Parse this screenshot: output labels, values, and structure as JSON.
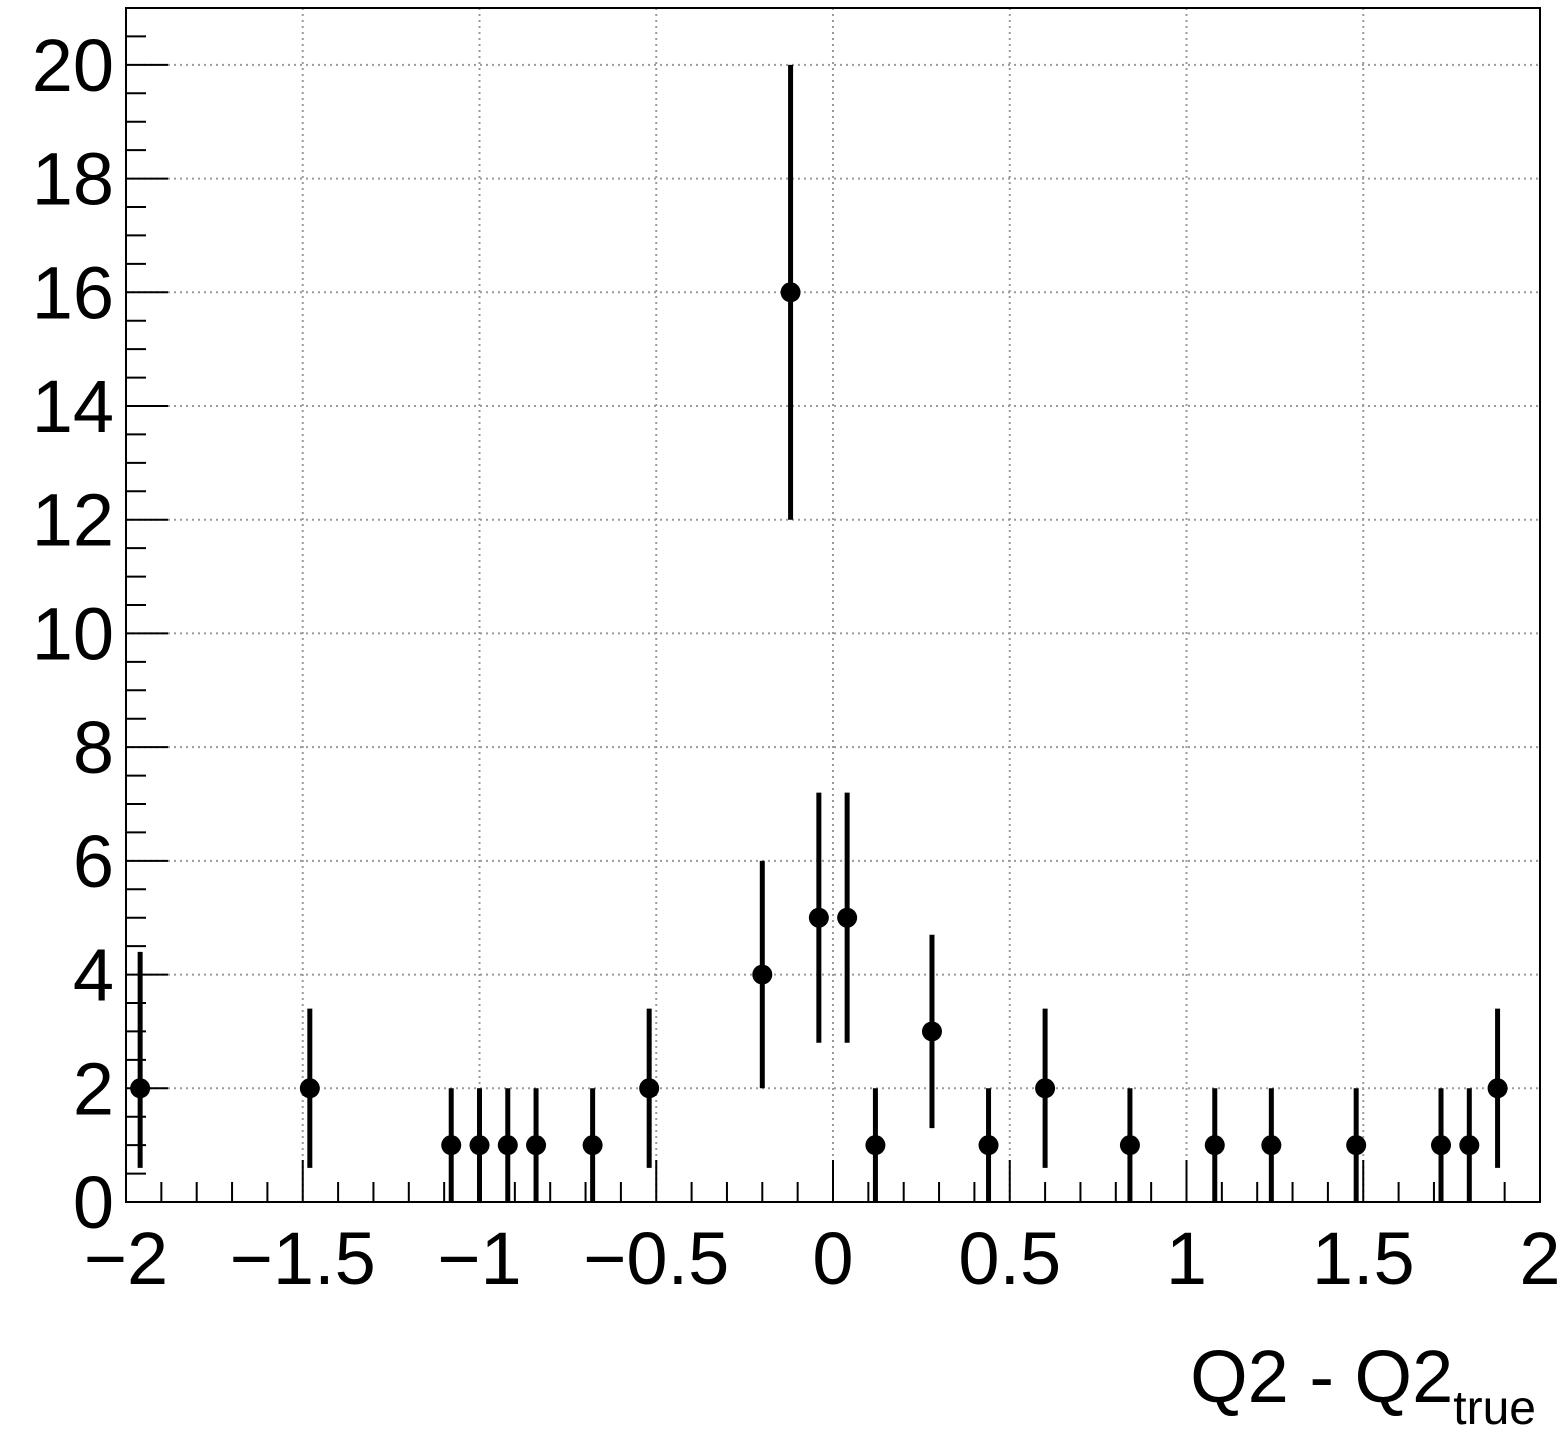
{
  "chart_data": {
    "type": "scatter",
    "title": "",
    "xlabel": "Q2 - Q2",
    "xlabel_subscript": "true",
    "ylabel": "",
    "xlim": [
      -2,
      2
    ],
    "ylim": [
      0,
      21
    ],
    "grid": true,
    "x_ticks": [
      "−2",
      "−1.5",
      "−1",
      "−0.5",
      "0",
      "0.5",
      "1",
      "1.5",
      "2"
    ],
    "x_tick_values": [
      -2,
      -1.5,
      -1,
      -0.5,
      0,
      0.5,
      1,
      1.5,
      2
    ],
    "y_ticks": [
      "0",
      "2",
      "4",
      "6",
      "8",
      "10",
      "12",
      "14",
      "16",
      "18",
      "20"
    ],
    "y_tick_values": [
      0,
      2,
      4,
      6,
      8,
      10,
      12,
      14,
      16,
      18,
      20
    ],
    "series": [
      {
        "points": [
          {
            "x": -1.96,
            "y": 2,
            "err_low": 1.4,
            "err_high": 2.4
          },
          {
            "x": -1.48,
            "y": 2,
            "err_low": 1.4,
            "err_high": 1.4
          },
          {
            "x": -1.08,
            "y": 1,
            "err_low": 1.0,
            "err_high": 1.0
          },
          {
            "x": -1.0,
            "y": 1,
            "err_low": 1.0,
            "err_high": 1.0
          },
          {
            "x": -0.92,
            "y": 1,
            "err_low": 1.0,
            "err_high": 1.0
          },
          {
            "x": -0.84,
            "y": 1,
            "err_low": 1.0,
            "err_high": 1.0
          },
          {
            "x": -0.68,
            "y": 1,
            "err_low": 1.0,
            "err_high": 1.0
          },
          {
            "x": -0.52,
            "y": 2,
            "err_low": 1.4,
            "err_high": 1.4
          },
          {
            "x": -0.2,
            "y": 4,
            "err_low": 2.0,
            "err_high": 2.0
          },
          {
            "x": -0.12,
            "y": 16,
            "err_low": 4.0,
            "err_high": 4.0
          },
          {
            "x": -0.04,
            "y": 5,
            "err_low": 2.2,
            "err_high": 2.2
          },
          {
            "x": 0.04,
            "y": 5,
            "err_low": 2.2,
            "err_high": 2.2
          },
          {
            "x": 0.12,
            "y": 1,
            "err_low": 1.0,
            "err_high": 1.0
          },
          {
            "x": 0.28,
            "y": 3,
            "err_low": 1.7,
            "err_high": 1.7
          },
          {
            "x": 0.44,
            "y": 1,
            "err_low": 1.0,
            "err_high": 1.0
          },
          {
            "x": 0.6,
            "y": 2,
            "err_low": 1.4,
            "err_high": 1.4
          },
          {
            "x": 0.84,
            "y": 1,
            "err_low": 1.0,
            "err_high": 1.0
          },
          {
            "x": 1.08,
            "y": 1,
            "err_low": 1.0,
            "err_high": 1.0
          },
          {
            "x": 1.24,
            "y": 1,
            "err_low": 1.0,
            "err_high": 1.0
          },
          {
            "x": 1.48,
            "y": 1,
            "err_low": 1.0,
            "err_high": 1.0
          },
          {
            "x": 1.72,
            "y": 1,
            "err_low": 1.0,
            "err_high": 1.0
          },
          {
            "x": 1.8,
            "y": 1,
            "err_low": 1.0,
            "err_high": 1.0
          },
          {
            "x": 1.88,
            "y": 2,
            "err_low": 1.4,
            "err_high": 1.4
          }
        ]
      }
    ]
  }
}
